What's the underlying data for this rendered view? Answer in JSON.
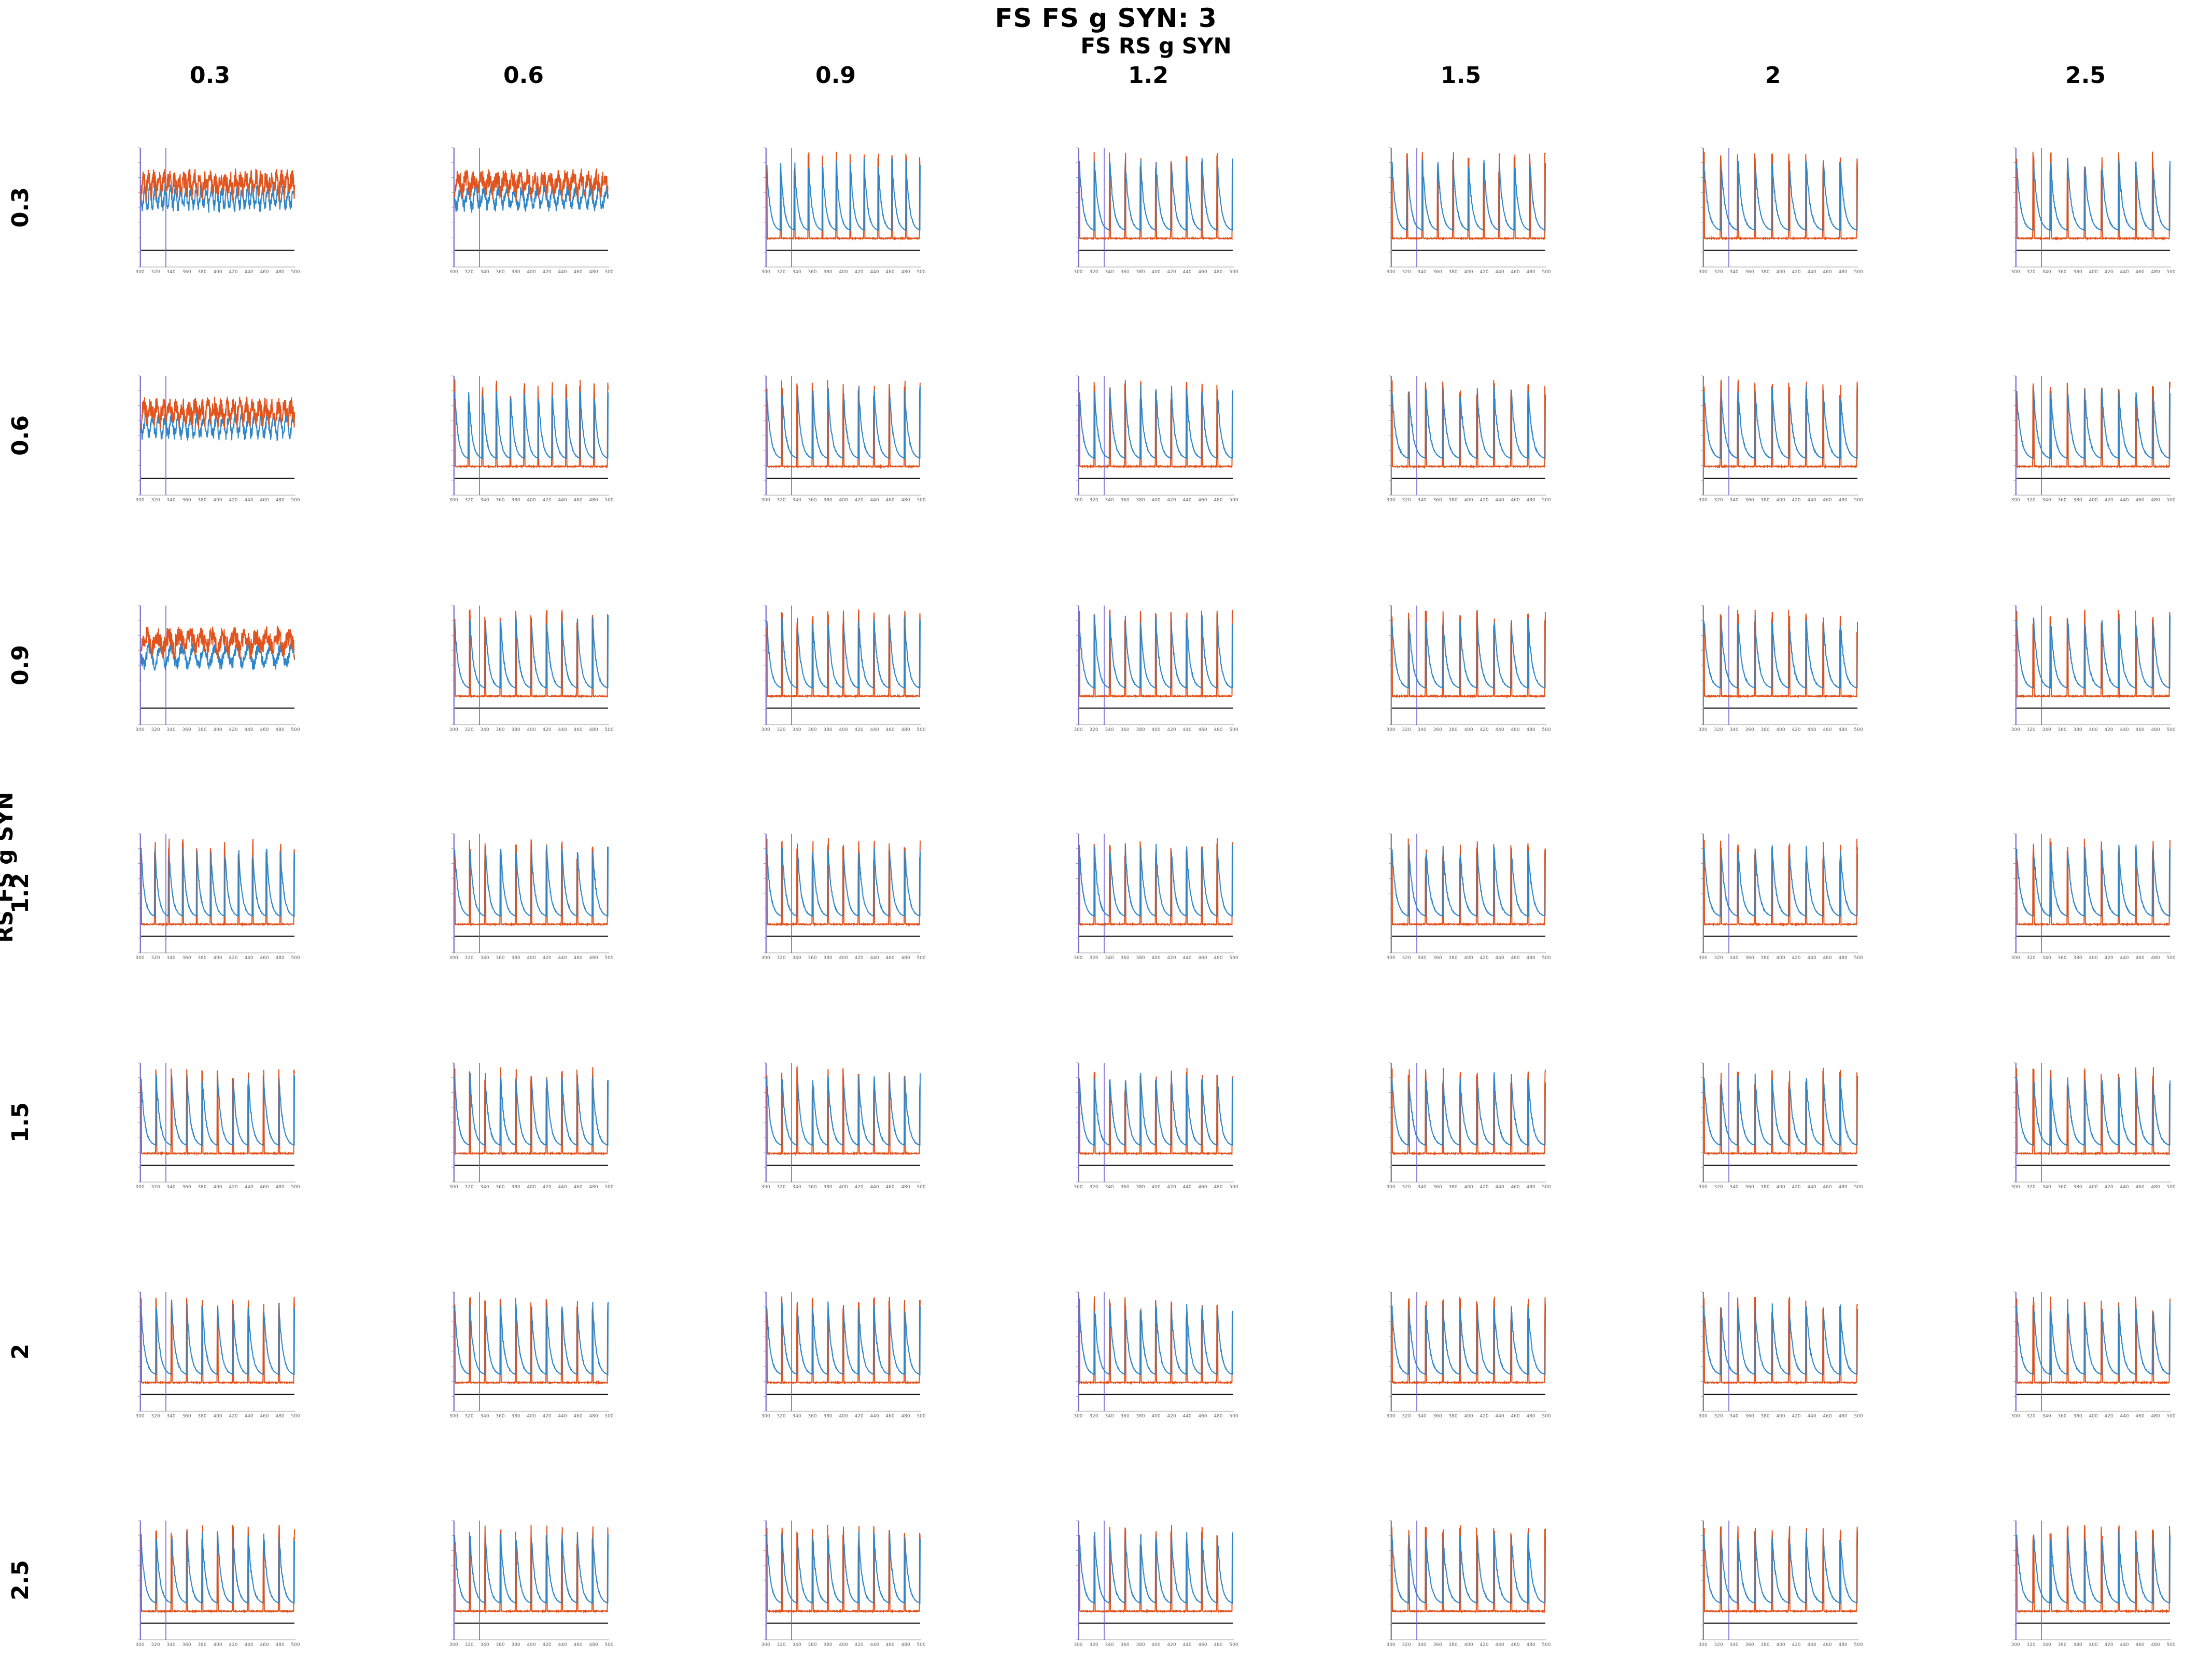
{
  "title": "FS FS g SYN: 3",
  "column_axis_label": "FS RS g SYN",
  "row_axis_label": "RS FS g SYN",
  "colors": {
    "rs_trace": "#2e86c9",
    "fs_trace": "#e2541e",
    "stimulus_marker": "#6a5ad2",
    "baseline": "#000000",
    "axis": "#9a9a9a",
    "tick_text": "#666666"
  },
  "chart_data": {
    "type": "line",
    "description_keys": [
      "row = RS FS g SYN",
      "column = FS RS g SYN"
    ],
    "columns": [
      "0.3",
      "0.6",
      "0.9",
      "1.2",
      "1.5",
      "2",
      "2.5"
    ],
    "rows": [
      "0.3",
      "0.6",
      "0.9",
      "1.2",
      "1.5",
      "2",
      "2.5"
    ],
    "grid": false,
    "panel_x_ticks": [
      "300",
      "320",
      "340",
      "360",
      "380",
      "400",
      "420",
      "440",
      "460",
      "480",
      "500"
    ],
    "panel_cycles": [
      [
        30,
        20,
        11,
        10,
        10,
        9,
        9
      ],
      [
        24,
        11,
        10,
        10,
        9,
        9,
        9
      ],
      [
        14,
        10,
        10,
        10,
        9,
        9,
        9
      ],
      [
        11,
        10,
        10,
        10,
        9,
        9,
        9
      ],
      [
        10,
        10,
        10,
        10,
        9,
        9,
        9
      ],
      [
        10,
        10,
        10,
        10,
        9,
        9,
        9
      ],
      [
        10,
        10,
        10,
        10,
        9,
        9,
        9
      ]
    ],
    "series": [
      {
        "name": "",
        "role": "rs_trace"
      },
      {
        "name": "",
        "role": "fs_trace"
      }
    ]
  }
}
